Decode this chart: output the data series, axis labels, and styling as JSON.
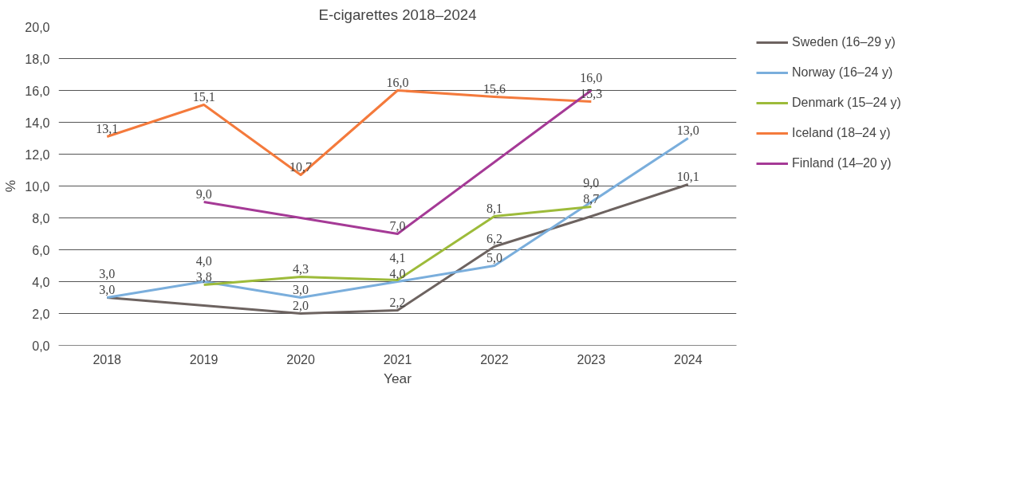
{
  "chart_data": {
    "type": "line",
    "title": "E-cigarettes 2018–2024",
    "xlabel": "Year",
    "ylabel": "%",
    "xlim": [
      2017.5,
      2024.5
    ],
    "xticks": [
      2018,
      2019,
      2020,
      2021,
      2022,
      2023,
      2024
    ],
    "ylim": [
      0,
      20
    ],
    "yticks": [
      {
        "value": 0,
        "label": "0,0"
      },
      {
        "value": 2,
        "label": "2,0"
      },
      {
        "value": 4,
        "label": "4,0"
      },
      {
        "value": 6,
        "label": "6,0"
      },
      {
        "value": 8,
        "label": "8,0"
      },
      {
        "value": 10,
        "label": "10,0"
      },
      {
        "value": 12,
        "label": "12,0"
      },
      {
        "value": 14,
        "label": "14,0"
      },
      {
        "value": 16,
        "label": "16,0"
      },
      {
        "value": 18,
        "label": "18,0"
      },
      {
        "value": 20,
        "label": "20,0"
      }
    ],
    "grid": "y",
    "legend": "right",
    "marker": "none",
    "line_style": "solid",
    "series": [
      {
        "name": "Sweden (16–29 y)",
        "color": "#6d6360",
        "x": [
          2018,
          2019,
          2020,
          2021,
          2022,
          2023,
          2024
        ],
        "values": [
          3.0,
          2.5,
          2.0,
          2.2,
          6.2,
          8.1,
          10.1
        ],
        "value_labels": [
          "3,0",
          null,
          "2,0",
          "2,2",
          "6,2",
          null,
          "10,1"
        ]
      },
      {
        "name": "Norway (16–24 y)",
        "color": "#7aaedc",
        "x": [
          2018,
          2019,
          2020,
          2021,
          2022,
          2023,
          2024
        ],
        "values": [
          3.0,
          4.0,
          3.0,
          4.0,
          5.0,
          9.0,
          13.0
        ],
        "value_labels": [
          "3,0",
          "4,0",
          "3,0",
          "4,0",
          "5,0",
          "9,0",
          "13,0"
        ]
      },
      {
        "name": "Denmark (15–24 y)",
        "color": "#9dbb3a",
        "x": [
          2019,
          2020,
          2021,
          2022,
          2023
        ],
        "values": [
          3.8,
          4.3,
          4.1,
          8.1,
          8.7
        ],
        "value_labels": [
          "3,8",
          "4,3",
          "4,1",
          "8,1",
          "8,7"
        ]
      },
      {
        "name": "Iceland (18–24 y)",
        "color": "#f47a3c",
        "x": [
          2018,
          2019,
          2020,
          2021,
          2022,
          2023
        ],
        "values": [
          13.1,
          15.1,
          10.7,
          16.0,
          15.6,
          15.3
        ],
        "value_labels": [
          "13,1",
          "15,1",
          "10,7",
          "16,0",
          "15,6",
          "15,3"
        ]
      },
      {
        "name": "Finland (14–20 y)",
        "color": "#a53a96",
        "x": [
          2019,
          2020,
          2021,
          2023
        ],
        "values": [
          9.0,
          8.0,
          7.0,
          16.0
        ],
        "value_labels": [
          "9,0",
          null,
          "7,0",
          "16,0"
        ]
      }
    ]
  }
}
